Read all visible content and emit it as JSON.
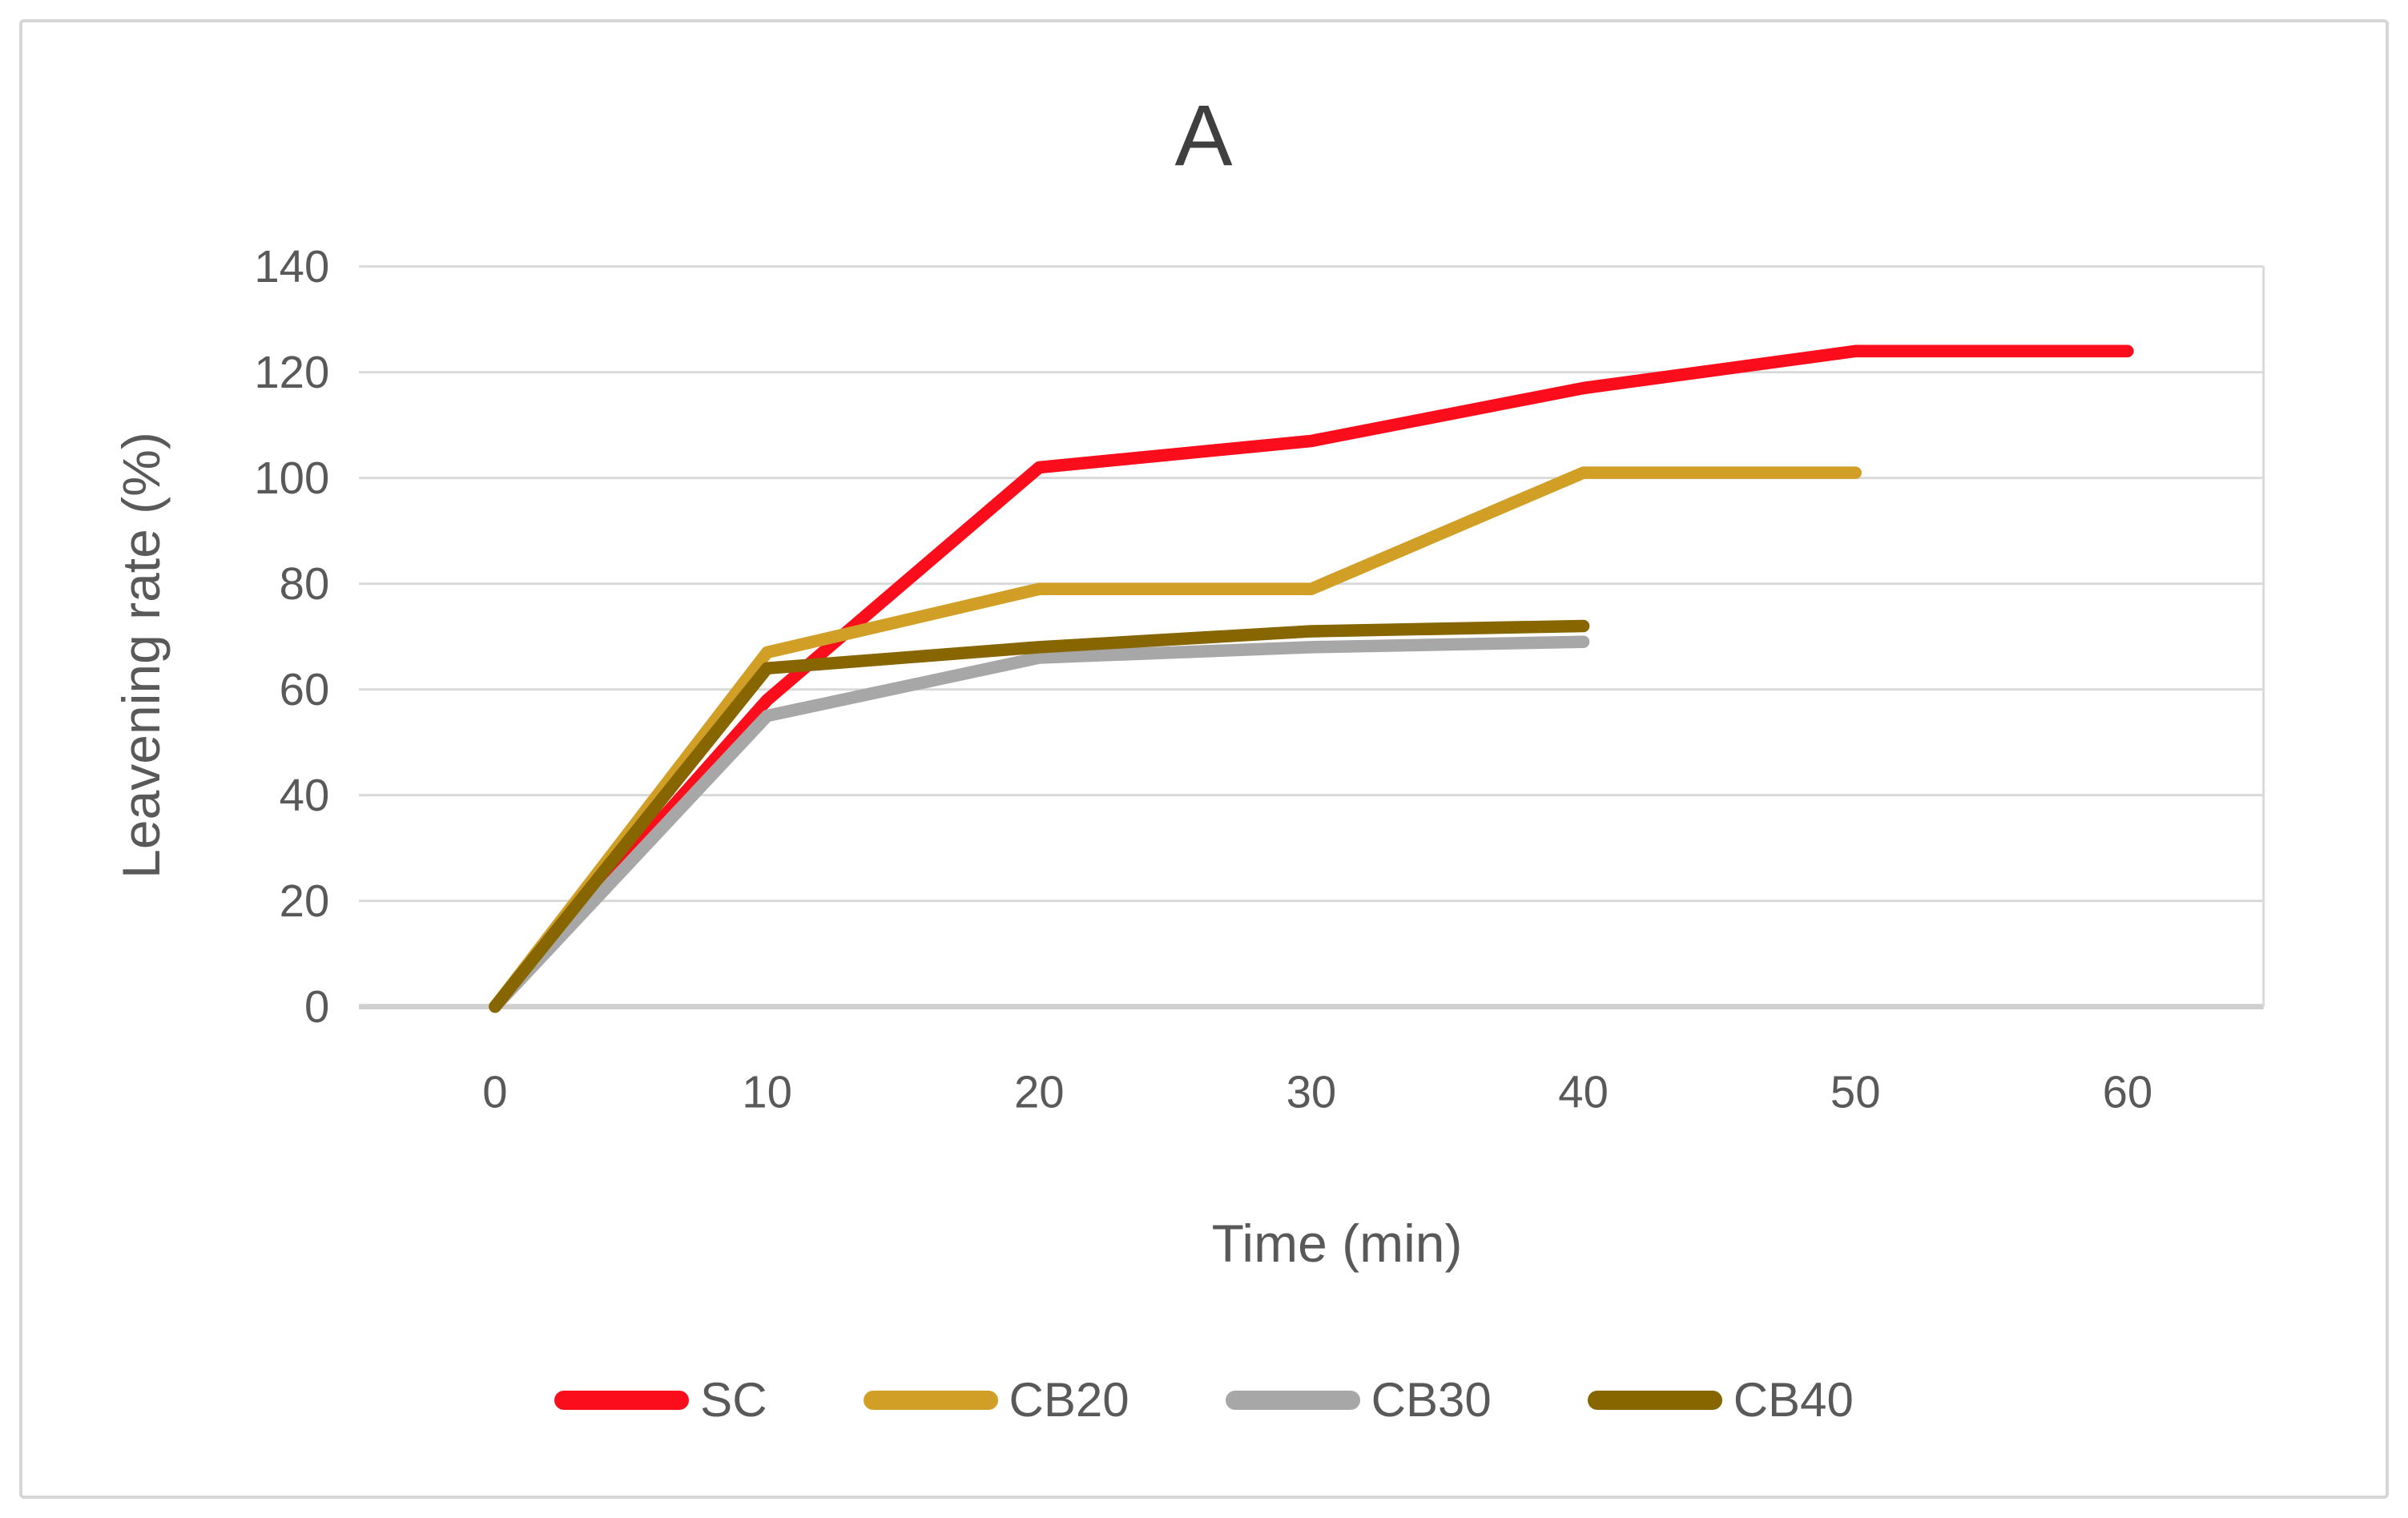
{
  "figure": {
    "title": "A"
  },
  "chart_data": {
    "type": "line",
    "title": "A",
    "xlabel": "Time (min)",
    "ylabel": "Leavening rate (%)",
    "categories": [
      "0",
      "10",
      "20",
      "30",
      "40",
      "50",
      "60"
    ],
    "yticks": [
      "0",
      "20",
      "40",
      "60",
      "80",
      "100",
      "120",
      "140"
    ],
    "ylim": [
      0,
      140
    ],
    "xunit": "min",
    "grid": "horizontal",
    "legend_position": "bottom",
    "series": [
      {
        "name": "SC",
        "color": "#fb0d1c",
        "values": [
          0,
          58,
          102,
          107,
          117,
          124,
          124
        ]
      },
      {
        "name": "CB20",
        "color": "#d29f26",
        "values": [
          0,
          67,
          79,
          79,
          101,
          101,
          null
        ]
      },
      {
        "name": "CB30",
        "color": "#a7a7a7",
        "values": [
          0,
          55,
          66,
          68,
          69,
          null,
          null
        ]
      },
      {
        "name": "CB40",
        "color": "#876600",
        "values": [
          0,
          64,
          68,
          71,
          72,
          null,
          null
        ]
      }
    ]
  },
  "style_colors": {
    "gridline": "#d9d9d9",
    "baseline": "#cfcfcf",
    "axis_text": "#595959",
    "title_text": "#3f3f3f",
    "border": "#d6d6d6"
  }
}
